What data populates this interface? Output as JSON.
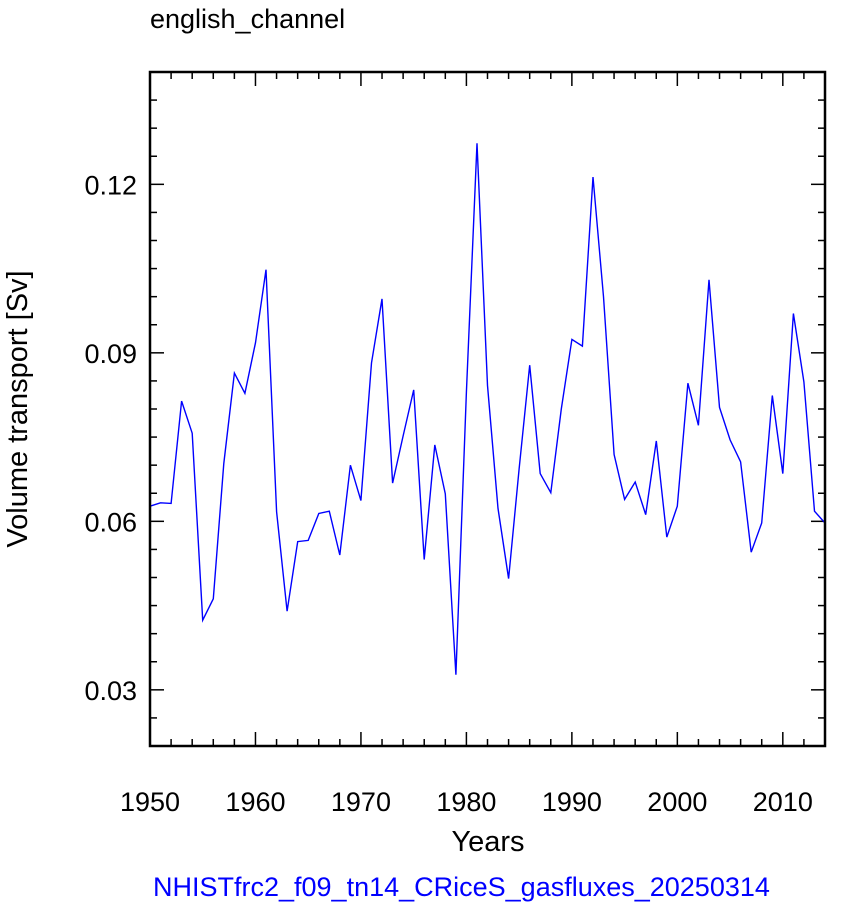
{
  "chart_data": {
    "type": "line",
    "title": "english_channel",
    "xlabel": "Years",
    "ylabel": "Volume transport [Sv]",
    "caption": "NHISTfrc2_f09_tn14_CRiceS_gasfluxes_20250314",
    "xlim": [
      1950,
      2014
    ],
    "ylim": [
      0.02,
      0.14
    ],
    "x_ticks": [
      1950,
      1960,
      1970,
      1980,
      1990,
      2000,
      2010
    ],
    "x_tick_labels": [
      "1950",
      "1960",
      "1970",
      "1980",
      "1990",
      "2000",
      "2010"
    ],
    "y_ticks": [
      0.03,
      0.06,
      0.09,
      0.12
    ],
    "y_tick_labels": [
      "0.03",
      "0.06",
      "0.09",
      "0.12"
    ],
    "grid": false,
    "line_color": "#0000ff",
    "series": [
      {
        "x": [
          1950,
          1951,
          1952,
          1953,
          1954,
          1955,
          1956,
          1957,
          1958,
          1959,
          1960,
          1961,
          1962,
          1963,
          1964,
          1965,
          1966,
          1967,
          1968,
          1969,
          1970,
          1971,
          1972,
          1973,
          1974,
          1975,
          1976,
          1977,
          1978,
          1979,
          1980,
          1981,
          1982,
          1983,
          1984,
          1985,
          1986,
          1987,
          1988,
          1989,
          1990,
          1991,
          1992,
          1993,
          1994,
          1995,
          1996,
          1997,
          1998,
          1999,
          2000,
          2001,
          2002,
          2003,
          2004,
          2005,
          2006,
          2007,
          2008,
          2009,
          2010,
          2011,
          2012,
          2013,
          2014
        ],
        "values": [
          0.0627,
          0.0633,
          0.0632,
          0.0814,
          0.0757,
          0.0424,
          0.0462,
          0.0703,
          0.0864,
          0.0828,
          0.0918,
          0.1048,
          0.0617,
          0.044,
          0.0564,
          0.0566,
          0.0614,
          0.0618,
          0.054,
          0.07,
          0.0637,
          0.0882,
          0.0996,
          0.0668,
          0.0752,
          0.0834,
          0.0532,
          0.0736,
          0.0649,
          0.0327,
          0.083,
          0.1273,
          0.0842,
          0.0623,
          0.0498,
          0.0693,
          0.0878,
          0.0685,
          0.0651,
          0.08,
          0.0924,
          0.0912,
          0.1213,
          0.1,
          0.0719,
          0.0639,
          0.067,
          0.0612,
          0.0743,
          0.0572,
          0.0627,
          0.0846,
          0.0771,
          0.103,
          0.0803,
          0.0745,
          0.0706,
          0.0545,
          0.0597,
          0.0824,
          0.0685,
          0.097,
          0.0848,
          0.0618,
          0.0597
        ]
      }
    ]
  }
}
